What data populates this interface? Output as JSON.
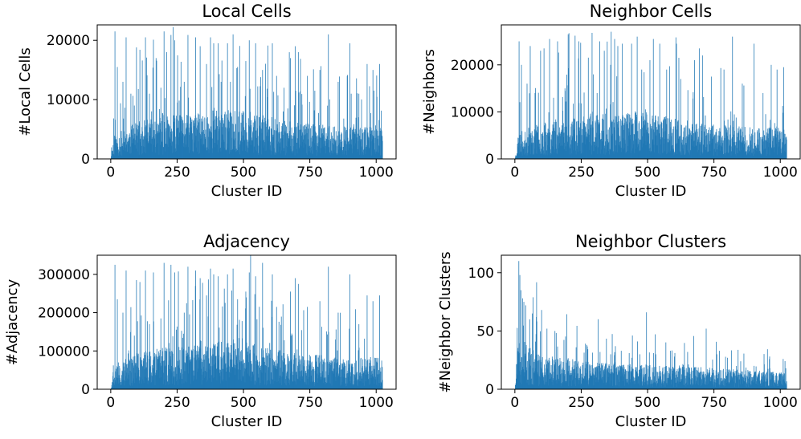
{
  "chart_data": [
    {
      "type": "bar",
      "title": "Local Cells",
      "xlabel": "Cluster ID",
      "ylabel": "#Local Cells",
      "xlim": [
        -51,
        1075
      ],
      "ylim": [
        0,
        22600
      ],
      "xticks": [
        0,
        250,
        500,
        750,
        1000
      ],
      "yticks": [
        0,
        10000,
        20000
      ],
      "color": "#1f77b4",
      "n_clusters": 1024,
      "spikes": [
        [
          15,
          21500
        ],
        [
          24,
          15500
        ],
        [
          45,
          13000
        ],
        [
          57,
          20500
        ],
        [
          66,
          3000
        ],
        [
          75,
          11000
        ],
        [
          88,
          9000
        ],
        [
          96,
          18800
        ],
        [
          109,
          18400
        ],
        [
          130,
          20500
        ],
        [
          145,
          11000
        ],
        [
          160,
          20100
        ],
        [
          170,
          17000
        ],
        [
          188,
          12000
        ],
        [
          200,
          21500
        ],
        [
          210,
          18000
        ],
        [
          226,
          20900
        ],
        [
          240,
          20000
        ],
        [
          250,
          9500
        ],
        [
          276,
          13000
        ],
        [
          290,
          20900
        ],
        [
          319,
          20500
        ],
        [
          336,
          19000
        ],
        [
          360,
          16000
        ],
        [
          375,
          20500
        ],
        [
          387,
          19500
        ],
        [
          404,
          19500
        ],
        [
          415,
          13000
        ],
        [
          439,
          19500
        ],
        [
          450,
          13000
        ],
        [
          460,
          21000
        ],
        [
          477,
          15500
        ],
        [
          508,
          16500
        ],
        [
          521,
          20000
        ],
        [
          545,
          19500
        ],
        [
          571,
          15000
        ],
        [
          608,
          19500
        ],
        [
          624,
          14000
        ],
        [
          652,
          12000
        ],
        [
          676,
          17000
        ],
        [
          694,
          19000
        ],
        [
          706,
          18000
        ],
        [
          740,
          14000
        ],
        [
          768,
          11500
        ],
        [
          787,
          15000
        ],
        [
          819,
          21000
        ],
        [
          856,
          13000
        ],
        [
          890,
          14000
        ],
        [
          900,
          19500
        ],
        [
          934,
          11000
        ],
        [
          965,
          16000
        ],
        [
          987,
          15000
        ],
        [
          1012,
          16000
        ],
        [
          1027,
          6000
        ]
      ],
      "profile": [
        [
          0,
          0
        ],
        [
          10,
          2500
        ],
        [
          100,
          3800
        ],
        [
          200,
          4500
        ],
        [
          300,
          4500
        ],
        [
          400,
          5000
        ],
        [
          500,
          5000
        ],
        [
          600,
          4300
        ],
        [
          700,
          3800
        ],
        [
          800,
          3500
        ],
        [
          900,
          3300
        ],
        [
          1000,
          3500
        ],
        [
          1023,
          3000
        ]
      ],
      "seed": 11
    },
    {
      "type": "bar",
      "title": "Neighbor Cells",
      "xlabel": "Cluster ID",
      "ylabel": "#Neighbors",
      "xlim": [
        -51,
        1075
      ],
      "ylim": [
        0,
        28500
      ],
      "xticks": [
        0,
        250,
        500,
        750,
        1000
      ],
      "yticks": [
        0,
        10000,
        20000
      ],
      "color": "#1f77b4",
      "n_clusters": 1024,
      "spikes": [
        [
          15,
          25000
        ],
        [
          24,
          20000
        ],
        [
          45,
          16000
        ],
        [
          57,
          24000
        ],
        [
          75,
          14000
        ],
        [
          88,
          12000
        ],
        [
          96,
          23000
        ],
        [
          109,
          23500
        ],
        [
          130,
          25500
        ],
        [
          145,
          13000
        ],
        [
          160,
          25000
        ],
        [
          188,
          15000
        ],
        [
          200,
          26500
        ],
        [
          226,
          26200
        ],
        [
          240,
          25000
        ],
        [
          276,
          16000
        ],
        [
          290,
          26800
        ],
        [
          319,
          25000
        ],
        [
          336,
          23000
        ],
        [
          360,
          20000
        ],
        [
          375,
          25500
        ],
        [
          387,
          24000
        ],
        [
          404,
          24500
        ],
        [
          439,
          24500
        ],
        [
          460,
          26000
        ],
        [
          477,
          19000
        ],
        [
          508,
          21000
        ],
        [
          521,
          25500
        ],
        [
          545,
          24500
        ],
        [
          571,
          19000
        ],
        [
          608,
          24500
        ],
        [
          624,
          17000
        ],
        [
          676,
          21000
        ],
        [
          694,
          23500
        ],
        [
          706,
          22000
        ],
        [
          740,
          17500
        ],
        [
          787,
          19000
        ],
        [
          819,
          26000
        ],
        [
          856,
          16000
        ],
        [
          900,
          24500
        ],
        [
          934,
          14000
        ],
        [
          965,
          20000
        ],
        [
          987,
          19000
        ],
        [
          1012,
          19500
        ],
        [
          1027,
          8000
        ]
      ],
      "profile": [
        [
          0,
          0
        ],
        [
          10,
          3000
        ],
        [
          100,
          4600
        ],
        [
          200,
          5600
        ],
        [
          300,
          5600
        ],
        [
          400,
          6200
        ],
        [
          500,
          6200
        ],
        [
          600,
          5300
        ],
        [
          700,
          4700
        ],
        [
          800,
          4300
        ],
        [
          900,
          4100
        ],
        [
          1000,
          4300
        ],
        [
          1023,
          3700
        ]
      ],
      "seed": 23
    },
    {
      "type": "bar",
      "title": "Adjacency",
      "xlabel": "Cluster ID",
      "ylabel": "#Adjacency",
      "xlim": [
        -51,
        1075
      ],
      "ylim": [
        0,
        350000
      ],
      "xticks": [
        0,
        250,
        500,
        750,
        1000
      ],
      "yticks": [
        0,
        100000,
        200000,
        300000
      ],
      "color": "#1f77b4",
      "n_clusters": 1024,
      "spikes": [
        [
          15,
          325000
        ],
        [
          24,
          235000
        ],
        [
          45,
          200000
        ],
        [
          57,
          310000
        ],
        [
          75,
          170000
        ],
        [
          88,
          140000
        ],
        [
          96,
          285000
        ],
        [
          109,
          280000
        ],
        [
          130,
          310000
        ],
        [
          145,
          170000
        ],
        [
          160,
          305000
        ],
        [
          188,
          185000
        ],
        [
          200,
          330000
        ],
        [
          226,
          325000
        ],
        [
          240,
          305000
        ],
        [
          276,
          200000
        ],
        [
          290,
          320000
        ],
        [
          319,
          310000
        ],
        [
          336,
          290000
        ],
        [
          360,
          245000
        ],
        [
          375,
          315000
        ],
        [
          387,
          300000
        ],
        [
          404,
          295000
        ],
        [
          439,
          300000
        ],
        [
          460,
          315000
        ],
        [
          477,
          235000
        ],
        [
          508,
          255000
        ],
        [
          521,
          305000
        ],
        [
          545,
          295000
        ],
        [
          571,
          330000
        ],
        [
          608,
          300000
        ],
        [
          624,
          215000
        ],
        [
          676,
          255000
        ],
        [
          694,
          290000
        ],
        [
          706,
          275000
        ],
        [
          740,
          215000
        ],
        [
          787,
          230000
        ],
        [
          819,
          320000
        ],
        [
          856,
          200000
        ],
        [
          900,
          300000
        ],
        [
          934,
          170000
        ],
        [
          965,
          245000
        ],
        [
          987,
          230000
        ],
        [
          1012,
          245000
        ],
        [
          1027,
          90000
        ]
      ],
      "profile": [
        [
          0,
          0
        ],
        [
          10,
          38000
        ],
        [
          100,
          58000
        ],
        [
          200,
          68000
        ],
        [
          300,
          68000
        ],
        [
          400,
          76000
        ],
        [
          500,
          76000
        ],
        [
          600,
          65000
        ],
        [
          700,
          58000
        ],
        [
          800,
          53000
        ],
        [
          900,
          50000
        ],
        [
          1000,
          53000
        ],
        [
          1023,
          45000
        ]
      ],
      "seed": 37
    },
    {
      "type": "bar",
      "title": "Neighbor Clusters",
      "xlabel": "Cluster ID",
      "ylabel": "#Neighbor Clusters",
      "xlim": [
        -51,
        1075
      ],
      "ylim": [
        0,
        115
      ],
      "xticks": [
        0,
        250,
        500,
        750,
        1000
      ],
      "yticks": [
        0,
        50,
        100
      ],
      "color": "#1f77b4",
      "n_clusters": 1024,
      "spikes": [
        [
          14,
          110
        ],
        [
          18,
          98
        ],
        [
          22,
          85
        ],
        [
          28,
          78
        ],
        [
          33,
          75
        ],
        [
          40,
          72
        ],
        [
          55,
          60
        ],
        [
          65,
          65
        ],
        [
          80,
          62
        ],
        [
          100,
          68
        ],
        [
          120,
          52
        ],
        [
          150,
          50
        ],
        [
          190,
          40
        ],
        [
          230,
          36
        ],
        [
          270,
          38
        ],
        [
          320,
          32
        ],
        [
          360,
          30
        ],
        [
          400,
          33
        ],
        [
          430,
          31
        ],
        [
          470,
          30
        ],
        [
          495,
          66
        ],
        [
          530,
          30
        ],
        [
          600,
          28
        ],
        [
          650,
          32
        ],
        [
          720,
          52
        ],
        [
          760,
          30
        ],
        [
          800,
          27
        ],
        [
          850,
          24
        ],
        [
          900,
          20
        ],
        [
          960,
          18
        ],
        [
          1010,
          26
        ],
        [
          1020,
          18
        ]
      ],
      "profile": [
        [
          0,
          0
        ],
        [
          8,
          22
        ],
        [
          20,
          28
        ],
        [
          50,
          22
        ],
        [
          100,
          18
        ],
        [
          200,
          16
        ],
        [
          300,
          14
        ],
        [
          400,
          13
        ],
        [
          500,
          13
        ],
        [
          600,
          12
        ],
        [
          700,
          12
        ],
        [
          800,
          11
        ],
        [
          900,
          10
        ],
        [
          1000,
          9
        ],
        [
          1023,
          8
        ]
      ],
      "seed": 51
    }
  ]
}
